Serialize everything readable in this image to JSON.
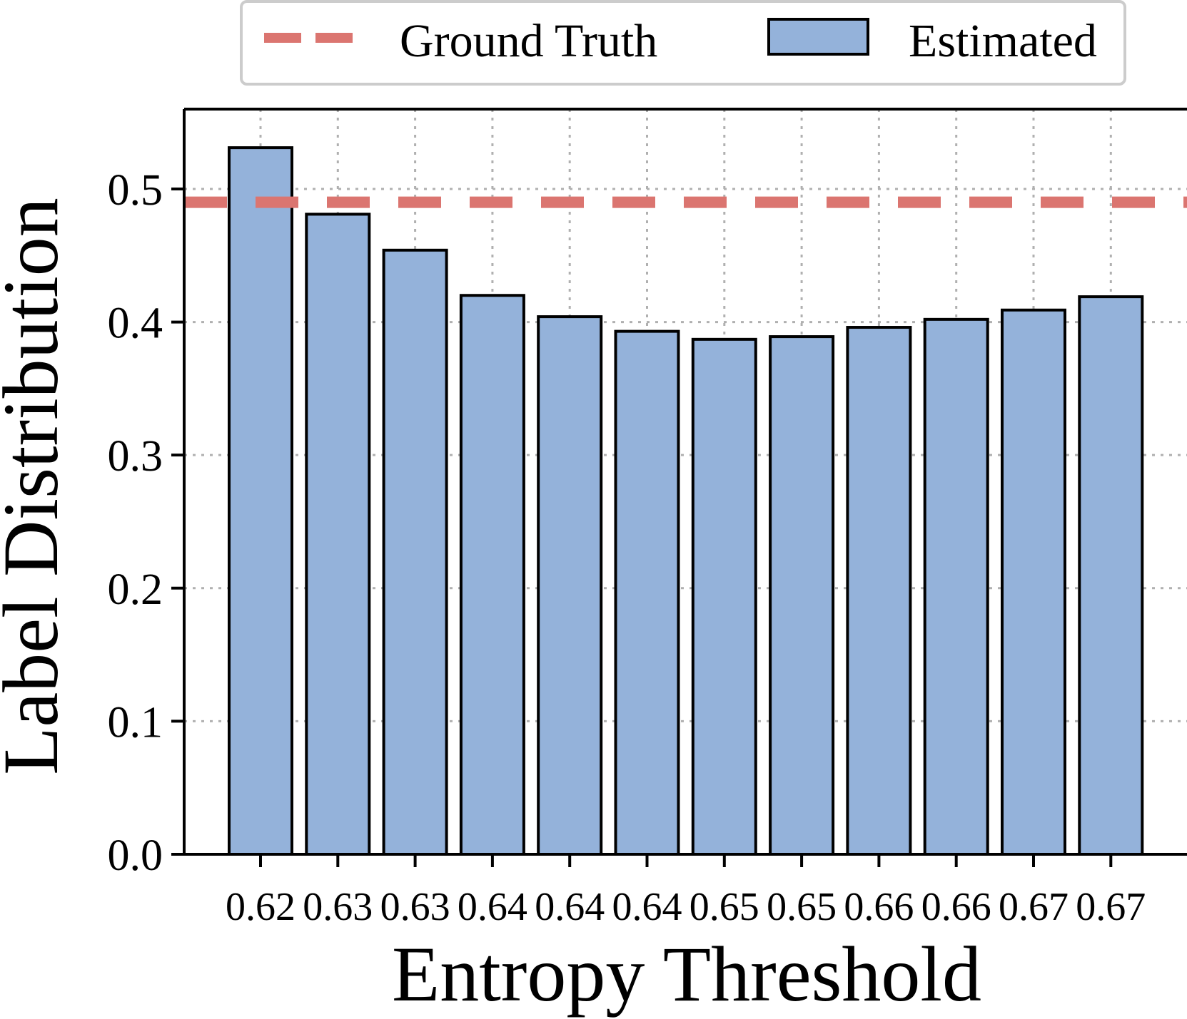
{
  "chart_data": {
    "type": "bar",
    "title": "",
    "xlabel": "Entropy Threshold",
    "ylabel": "Label Distribution",
    "categories": [
      "0.62",
      "0.63",
      "0.63",
      "0.64",
      "0.64",
      "0.64",
      "0.65",
      "0.65",
      "0.66",
      "0.66",
      "0.67",
      "0.67"
    ],
    "series": [
      {
        "name": "Estimated",
        "values": [
          0.531,
          0.481,
          0.454,
          0.42,
          0.404,
          0.393,
          0.387,
          0.389,
          0.396,
          0.402,
          0.409,
          0.419
        ]
      }
    ],
    "reference_lines": [
      {
        "name": "Ground Truth",
        "value": 0.49,
        "style": "dashed"
      }
    ],
    "ylim": [
      0.0,
      0.56
    ],
    "yticks": [
      0.0,
      0.1,
      0.2,
      0.3,
      0.4,
      0.5
    ],
    "ytick_labels": [
      "0.0",
      "0.1",
      "0.2",
      "0.3",
      "0.4",
      "0.5"
    ],
    "grid": true,
    "legend": {
      "placement": "top-center",
      "entries": [
        {
          "label": "Ground Truth",
          "kind": "dashed-line"
        },
        {
          "label": "Estimated",
          "kind": "bar"
        }
      ]
    },
    "colors": {
      "bar_fill": "#94b2da",
      "bar_edge": "#000000",
      "ground_truth": "#db7570",
      "grid": "#b0b0b0",
      "legend_border": "#cccccc"
    }
  }
}
